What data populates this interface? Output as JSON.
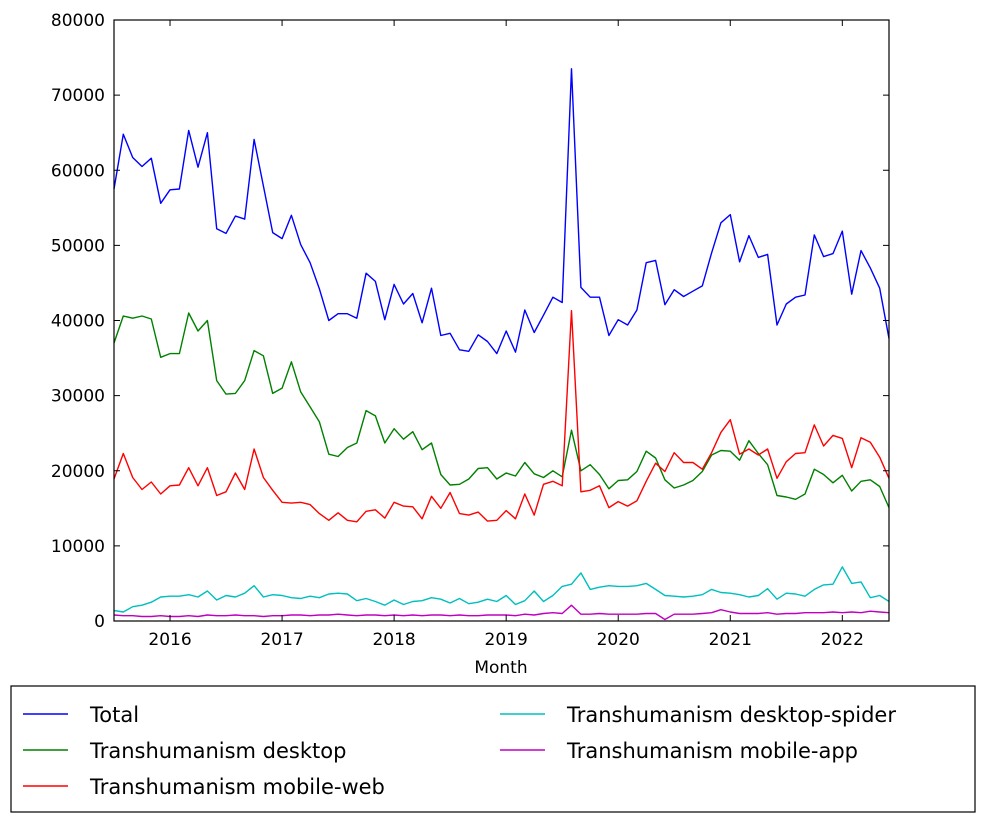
{
  "chart_data": {
    "type": "line",
    "title": "",
    "xlabel": "Month",
    "ylabel": "",
    "x_start": "2015-07",
    "xlim": [
      "2015-07",
      "2022-06"
    ],
    "ylim": [
      0,
      80000
    ],
    "x_ticks": [
      "2016",
      "2017",
      "2018",
      "2019",
      "2020",
      "2021",
      "2022"
    ],
    "y_ticks": [
      0,
      10000,
      20000,
      30000,
      40000,
      50000,
      60000,
      70000,
      80000
    ],
    "grid": false,
    "legend_position": "below plot, two columns",
    "series": [
      {
        "name": "Total",
        "color": "#0000ff",
        "values": [
          57500,
          64800,
          61700,
          60500,
          61600,
          55600,
          57400,
          57500,
          65300,
          60400,
          65000,
          52200,
          51600,
          53900,
          53500,
          64100,
          57900,
          51700,
          50900,
          54000,
          50100,
          47700,
          44200,
          40000,
          40900,
          40900,
          40300,
          46300,
          45200,
          40100,
          44800,
          42200,
          43600,
          39700,
          44300,
          38000,
          38300,
          36100,
          35900,
          38100,
          37200,
          35600,
          38600,
          35800,
          41400,
          38400,
          40700,
          43100,
          42400,
          73500,
          44400,
          43100,
          43100,
          38000,
          40100,
          39400,
          41400,
          47700,
          48000,
          42100,
          44100,
          43200,
          43900,
          44600,
          49000,
          53000,
          54100,
          47800,
          51300,
          48400,
          48800,
          39400,
          42200,
          43100,
          43400,
          51400,
          48500,
          48900,
          51900,
          43500,
          49300,
          47000,
          44300,
          37600
        ]
      },
      {
        "name": "Transhumanism desktop",
        "color": "#008000",
        "values": [
          37000,
          40600,
          40300,
          40600,
          40200,
          35100,
          35600,
          35600,
          41000,
          38600,
          40000,
          32000,
          30200,
          30300,
          32000,
          36000,
          35300,
          30300,
          31000,
          34500,
          30500,
          28500,
          26500,
          22200,
          21900,
          23100,
          23700,
          28000,
          27300,
          23700,
          25600,
          24200,
          25200,
          22800,
          23700,
          19500,
          18100,
          18200,
          18900,
          20300,
          20400,
          18900,
          19700,
          19300,
          21100,
          19600,
          19100,
          20000,
          19200,
          25400,
          20000,
          20800,
          19500,
          17600,
          18700,
          18800,
          19900,
          22600,
          21700,
          18800,
          17700,
          18100,
          18700,
          19900,
          22100,
          22700,
          22600,
          21400,
          24000,
          22300,
          20800,
          16700,
          16500,
          16200,
          16900,
          20200,
          19500,
          18400,
          19400,
          17300,
          18600,
          18800,
          17900,
          15100
        ]
      },
      {
        "name": "Transhumanism mobile-web",
        "color": "#ff0000",
        "values": [
          18900,
          22300,
          19100,
          17500,
          18500,
          16900,
          18000,
          18100,
          20400,
          18000,
          20400,
          16700,
          17200,
          19700,
          17500,
          22900,
          19100,
          17400,
          15800,
          15700,
          15800,
          15500,
          14300,
          13400,
          14400,
          13400,
          13200,
          14600,
          14800,
          13700,
          15800,
          15300,
          15200,
          13600,
          16600,
          15000,
          17100,
          14300,
          14100,
          14500,
          13300,
          13400,
          14700,
          13600,
          16900,
          14100,
          18200,
          18600,
          18000,
          41300,
          17200,
          17400,
          18000,
          15100,
          15900,
          15300,
          16000,
          18600,
          21000,
          19900,
          22400,
          21100,
          21100,
          20200,
          22400,
          25100,
          26800,
          22200,
          22900,
          22100,
          22900,
          19000,
          21200,
          22300,
          22400,
          26100,
          23300,
          24700,
          24300,
          20400,
          24400,
          23800,
          21800,
          19000
        ]
      },
      {
        "name": "Transhumanism desktop-spider",
        "color": "#00bfbf",
        "values": [
          1400,
          1200,
          1900,
          2100,
          2500,
          3200,
          3300,
          3300,
          3500,
          3200,
          4000,
          2800,
          3400,
          3200,
          3700,
          4700,
          3200,
          3500,
          3400,
          3100,
          3000,
          3300,
          3100,
          3600,
          3700,
          3600,
          2700,
          3000,
          2600,
          2100,
          2800,
          2200,
          2600,
          2700,
          3100,
          2900,
          2400,
          3000,
          2300,
          2500,
          2900,
          2600,
          3400,
          2200,
          2700,
          4000,
          2600,
          3400,
          4600,
          4900,
          6400,
          4200,
          4500,
          4700,
          4600,
          4600,
          4700,
          5000,
          4200,
          3400,
          3300,
          3200,
          3300,
          3500,
          4200,
          3800,
          3700,
          3500,
          3200,
          3400,
          4300,
          2900,
          3700,
          3600,
          3300,
          4200,
          4800,
          4900,
          7200,
          5000,
          5200,
          3100,
          3400,
          2600
        ]
      },
      {
        "name": "Transhumanism mobile-app",
        "color": "#bf00bf",
        "values": [
          800,
          700,
          700,
          600,
          600,
          700,
          600,
          600,
          700,
          600,
          800,
          700,
          700,
          800,
          700,
          700,
          600,
          700,
          700,
          800,
          800,
          700,
          800,
          800,
          900,
          800,
          700,
          800,
          800,
          700,
          800,
          700,
          800,
          700,
          800,
          800,
          700,
          800,
          700,
          700,
          800,
          800,
          800,
          700,
          900,
          800,
          1000,
          1100,
          1000,
          2100,
          900,
          900,
          1000,
          900,
          900,
          900,
          900,
          1000,
          1000,
          200,
          900,
          900,
          900,
          1000,
          1100,
          1500,
          1200,
          1000,
          1000,
          1000,
          1100,
          900,
          1000,
          1000,
          1100,
          1100,
          1100,
          1200,
          1100,
          1200,
          1100,
          1300,
          1200,
          1100
        ]
      }
    ]
  }
}
